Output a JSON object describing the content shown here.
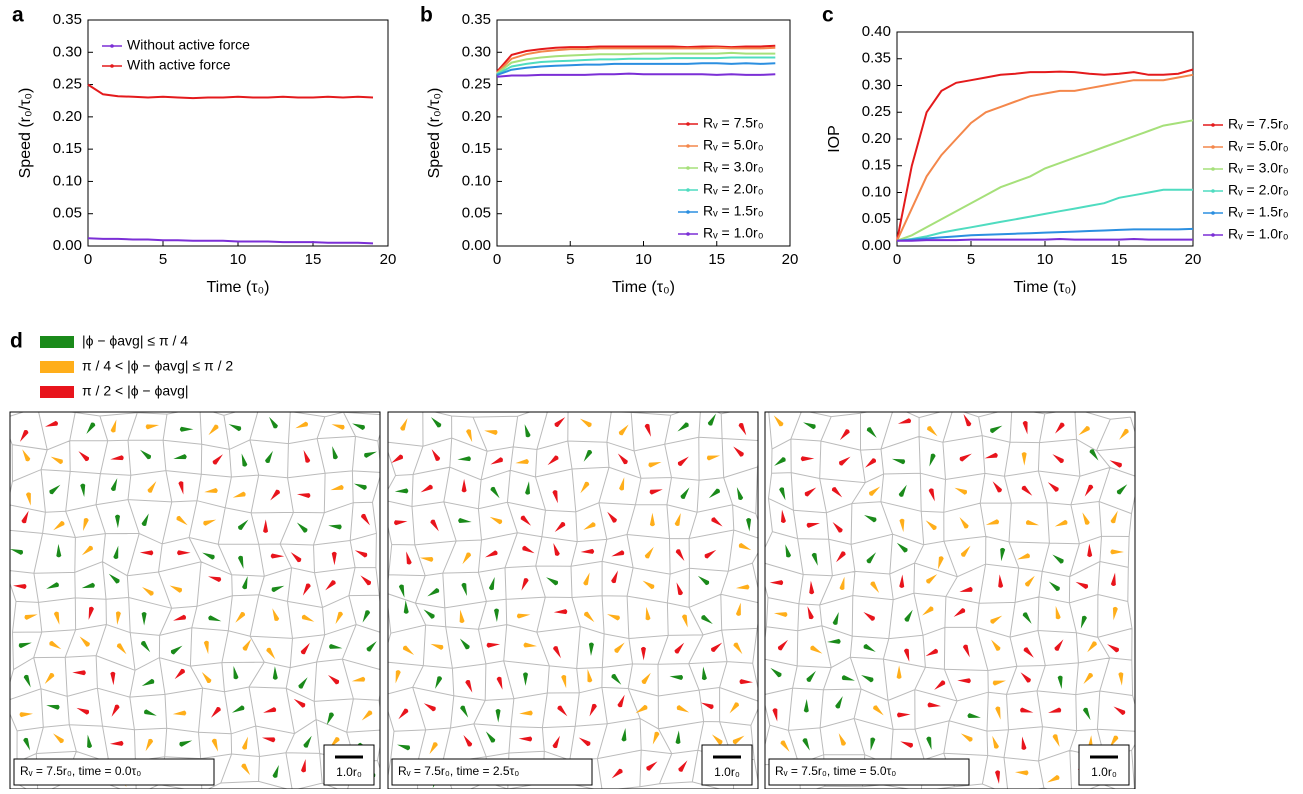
{
  "chart_data": [
    {
      "type": "line",
      "label": "a",
      "xlabel": "Time (τ₀)",
      "ylabel": "Speed (r₀/τ₀)",
      "legend": "upper left",
      "xlim": [
        0,
        20
      ],
      "xticks": [
        0,
        5,
        10,
        15,
        20
      ],
      "ylim": [
        0,
        0.35
      ],
      "yticks": [
        {
          "value": 0,
          "label": "0.00"
        },
        {
          "value": 0.05,
          "label": "0.05"
        },
        {
          "value": 0.1,
          "label": "0.10"
        },
        {
          "value": 0.15,
          "label": "0.15"
        },
        {
          "value": 0.2,
          "label": "0.20"
        },
        {
          "value": 0.25,
          "label": "0.25"
        },
        {
          "value": 0.3,
          "label": "0.30"
        },
        {
          "value": 0.35,
          "label": "0.35"
        }
      ],
      "x": [
        0,
        1,
        2,
        3,
        4,
        5,
        6,
        7,
        8,
        9,
        10,
        11,
        12,
        13,
        14,
        15,
        16,
        17,
        18,
        19
      ],
      "series": [
        {
          "name": "Without active force",
          "color": "#7b2fd6",
          "values": [
            0.012,
            0.011,
            0.011,
            0.01,
            0.01,
            0.009,
            0.009,
            0.008,
            0.008,
            0.008,
            0.007,
            0.007,
            0.007,
            0.006,
            0.006,
            0.006,
            0.005,
            0.005,
            0.005,
            0.004
          ]
        },
        {
          "name": "With active force",
          "color": "#e41a1c",
          "values": [
            0.25,
            0.235,
            0.232,
            0.231,
            0.23,
            0.231,
            0.23,
            0.229,
            0.23,
            0.23,
            0.231,
            0.23,
            0.23,
            0.231,
            0.23,
            0.23,
            0.231,
            0.23,
            0.231,
            0.23
          ]
        }
      ]
    },
    {
      "type": "line",
      "label": "b",
      "xlabel": "Time (τ₀)",
      "ylabel": "Speed (r₀/τ₀)",
      "legend": "lower right",
      "xlim": [
        0,
        20
      ],
      "xticks": [
        0,
        5,
        10,
        15,
        20
      ],
      "ylim": [
        0,
        0.35
      ],
      "yticks": [
        {
          "value": 0,
          "label": "0.00"
        },
        {
          "value": 0.05,
          "label": "0.05"
        },
        {
          "value": 0.1,
          "label": "0.10"
        },
        {
          "value": 0.15,
          "label": "0.15"
        },
        {
          "value": 0.2,
          "label": "0.20"
        },
        {
          "value": 0.25,
          "label": "0.25"
        },
        {
          "value": 0.3,
          "label": "0.30"
        },
        {
          "value": 0.35,
          "label": "0.35"
        }
      ],
      "x": [
        0,
        1,
        2,
        3,
        4,
        5,
        6,
        7,
        8,
        9,
        10,
        11,
        12,
        13,
        14,
        15,
        16,
        17,
        18,
        19
      ],
      "series": [
        {
          "name": "Rᵥ = 7.5r₀",
          "color": "#e41a1c",
          "values": [
            0.27,
            0.296,
            0.302,
            0.305,
            0.307,
            0.308,
            0.308,
            0.309,
            0.309,
            0.309,
            0.309,
            0.309,
            0.309,
            0.308,
            0.309,
            0.309,
            0.308,
            0.309,
            0.309,
            0.31
          ]
        },
        {
          "name": "Rᵥ = 5.0r₀",
          "color": "#f4874b",
          "values": [
            0.268,
            0.29,
            0.297,
            0.301,
            0.303,
            0.305,
            0.305,
            0.306,
            0.306,
            0.306,
            0.306,
            0.306,
            0.306,
            0.306,
            0.306,
            0.307,
            0.306,
            0.306,
            0.306,
            0.307
          ]
        },
        {
          "name": "Rᵥ = 3.0r₀",
          "color": "#a6e07a",
          "values": [
            0.267,
            0.284,
            0.289,
            0.292,
            0.294,
            0.295,
            0.296,
            0.297,
            0.297,
            0.297,
            0.298,
            0.298,
            0.298,
            0.298,
            0.298,
            0.298,
            0.299,
            0.298,
            0.298,
            0.298
          ]
        },
        {
          "name": "Rᵥ = 2.0r₀",
          "color": "#4fdcc0",
          "values": [
            0.266,
            0.278,
            0.282,
            0.285,
            0.286,
            0.287,
            0.288,
            0.289,
            0.289,
            0.29,
            0.29,
            0.29,
            0.291,
            0.291,
            0.291,
            0.291,
            0.292,
            0.292,
            0.292,
            0.292
          ]
        },
        {
          "name": "Rᵥ = 1.5r₀",
          "color": "#2b8fe0",
          "values": [
            0.265,
            0.273,
            0.276,
            0.278,
            0.279,
            0.28,
            0.281,
            0.281,
            0.282,
            0.282,
            0.282,
            0.282,
            0.282,
            0.282,
            0.283,
            0.283,
            0.282,
            0.283,
            0.282,
            0.283
          ]
        },
        {
          "name": "Rᵥ = 1.0r₀",
          "color": "#7b2fd6",
          "values": [
            0.262,
            0.264,
            0.264,
            0.265,
            0.265,
            0.265,
            0.265,
            0.266,
            0.266,
            0.267,
            0.266,
            0.266,
            0.266,
            0.266,
            0.266,
            0.265,
            0.266,
            0.265,
            0.265,
            0.266
          ]
        }
      ]
    },
    {
      "type": "line",
      "label": "c",
      "xlabel": "Time (τ₀)",
      "ylabel": "IOP",
      "legend": "outside right",
      "xlim": [
        0,
        20
      ],
      "xticks": [
        0,
        5,
        10,
        15,
        20
      ],
      "ylim": [
        0,
        0.4
      ],
      "yticks": [
        {
          "value": 0,
          "label": "0.00"
        },
        {
          "value": 0.05,
          "label": "0.05"
        },
        {
          "value": 0.1,
          "label": "0.10"
        },
        {
          "value": 0.15,
          "label": "0.15"
        },
        {
          "value": 0.2,
          "label": "0.20"
        },
        {
          "value": 0.25,
          "label": "0.25"
        },
        {
          "value": 0.3,
          "label": "0.30"
        },
        {
          "value": 0.35,
          "label": "0.35"
        },
        {
          "value": 0.4,
          "label": "0.40"
        }
      ],
      "x": [
        0,
        1,
        2,
        3,
        4,
        5,
        6,
        7,
        8,
        9,
        10,
        11,
        12,
        13,
        14,
        15,
        16,
        17,
        18,
        19,
        20
      ],
      "series": [
        {
          "name": "Rᵥ = 7.5r₀",
          "color": "#e41a1c",
          "values": [
            0.01,
            0.15,
            0.25,
            0.29,
            0.305,
            0.31,
            0.315,
            0.32,
            0.322,
            0.325,
            0.325,
            0.326,
            0.325,
            0.322,
            0.32,
            0.322,
            0.325,
            0.32,
            0.32,
            0.322,
            0.33
          ]
        },
        {
          "name": "Rᵥ = 5.0r₀",
          "color": "#f4874b",
          "values": [
            0.01,
            0.07,
            0.13,
            0.17,
            0.2,
            0.23,
            0.25,
            0.26,
            0.27,
            0.28,
            0.285,
            0.29,
            0.29,
            0.295,
            0.3,
            0.305,
            0.31,
            0.31,
            0.31,
            0.315,
            0.32
          ]
        },
        {
          "name": "Rᵥ = 3.0r₀",
          "color": "#a6e07a",
          "values": [
            0.01,
            0.02,
            0.035,
            0.05,
            0.065,
            0.08,
            0.095,
            0.11,
            0.12,
            0.13,
            0.145,
            0.155,
            0.165,
            0.175,
            0.185,
            0.195,
            0.205,
            0.215,
            0.225,
            0.23,
            0.235
          ]
        },
        {
          "name": "Rᵥ = 2.0r₀",
          "color": "#4fdcc0",
          "values": [
            0.01,
            0.013,
            0.018,
            0.025,
            0.03,
            0.035,
            0.04,
            0.045,
            0.05,
            0.055,
            0.06,
            0.065,
            0.07,
            0.075,
            0.08,
            0.09,
            0.095,
            0.1,
            0.105,
            0.105,
            0.105
          ]
        },
        {
          "name": "Rᵥ = 1.5r₀",
          "color": "#2b8fe0",
          "values": [
            0.01,
            0.012,
            0.014,
            0.016,
            0.018,
            0.02,
            0.021,
            0.022,
            0.023,
            0.024,
            0.025,
            0.026,
            0.027,
            0.028,
            0.029,
            0.03,
            0.031,
            0.031,
            0.031,
            0.031,
            0.032
          ]
        },
        {
          "name": "Rᵥ = 1.0r₀",
          "color": "#7b2fd6",
          "values": [
            0.01,
            0.01,
            0.011,
            0.011,
            0.011,
            0.012,
            0.012,
            0.012,
            0.012,
            0.012,
            0.012,
            0.013,
            0.012,
            0.012,
            0.012,
            0.012,
            0.013,
            0.012,
            0.012,
            0.012,
            0.012
          ]
        }
      ]
    }
  ],
  "panel_d": {
    "label": "d",
    "legend": [
      {
        "text": "|ϕ − ϕavg| ≤ π / 4",
        "color": "#1a8a1a"
      },
      {
        "text": "π / 4 < |ϕ − ϕavg| ≤ π / 2",
        "color": "#ffae1a"
      },
      {
        "text": "π / 2 < |ϕ − ϕavg|",
        "color": "#e8141c"
      }
    ],
    "panels": [
      {
        "caption": "Rᵥ = 7.5r₀, time = 0.0τ₀",
        "scale": "1.0r₀"
      },
      {
        "caption": "Rᵥ = 7.5r₀, time = 2.5τ₀",
        "scale": "1.0r₀"
      },
      {
        "caption": "Rᵥ = 7.5r₀, time = 5.0τ₀",
        "scale": "1.0r₀"
      }
    ]
  }
}
